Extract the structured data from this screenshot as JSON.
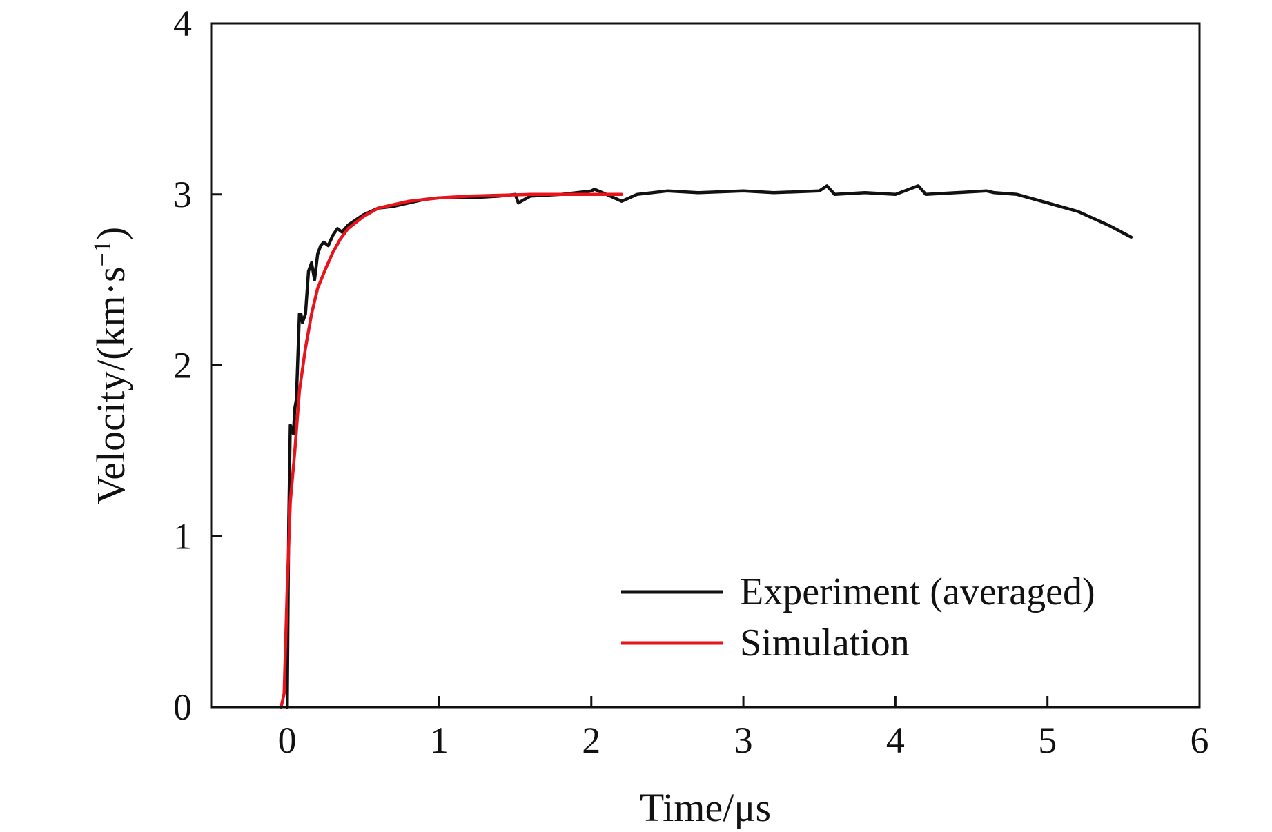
{
  "chart_data": {
    "type": "line",
    "xlabel": "Time/μs",
    "ylabel": "Velocity/(km·s",
    "ylabel_suffix": ")",
    "ylabel_exponent": "−1",
    "xlim": [
      -0.5,
      6
    ],
    "ylim": [
      0,
      4
    ],
    "xticks": [
      0,
      1,
      2,
      3,
      4,
      5,
      6
    ],
    "xtick_labels": [
      "0",
      "1",
      "2",
      "3",
      "4",
      "5",
      "6"
    ],
    "yticks": [
      0,
      1,
      2,
      3,
      4
    ],
    "ytick_labels": [
      "0",
      "1",
      "2",
      "3",
      "4"
    ],
    "grid": false,
    "legend_position": "bottom-right",
    "series": [
      {
        "name": "Experiment (averaged)",
        "color": "#111111",
        "x": [
          0.0,
          0.01,
          0.02,
          0.03,
          0.04,
          0.05,
          0.06,
          0.08,
          0.09,
          0.1,
          0.12,
          0.14,
          0.16,
          0.18,
          0.2,
          0.22,
          0.24,
          0.27,
          0.3,
          0.33,
          0.36,
          0.4,
          0.45,
          0.5,
          0.55,
          0.6,
          0.7,
          0.8,
          0.9,
          1.0,
          1.2,
          1.4,
          1.5,
          1.52,
          1.6,
          1.8,
          2.0,
          2.02,
          2.1,
          2.2,
          2.3,
          2.5,
          2.7,
          3.0,
          3.2,
          3.5,
          3.55,
          3.6,
          3.8,
          4.0,
          4.15,
          4.2,
          4.4,
          4.6,
          4.65,
          4.8,
          5.0,
          5.2,
          5.4,
          5.55
        ],
        "y": [
          0.0,
          1.1,
          1.65,
          1.62,
          1.6,
          1.75,
          1.8,
          2.3,
          2.3,
          2.25,
          2.3,
          2.55,
          2.6,
          2.5,
          2.65,
          2.7,
          2.72,
          2.7,
          2.76,
          2.8,
          2.78,
          2.82,
          2.85,
          2.88,
          2.9,
          2.92,
          2.93,
          2.95,
          2.97,
          2.98,
          2.98,
          2.99,
          3.0,
          2.95,
          2.99,
          3.0,
          3.02,
          3.03,
          3.0,
          2.96,
          3.0,
          3.02,
          3.01,
          3.02,
          3.01,
          3.02,
          3.05,
          3.0,
          3.01,
          3.0,
          3.05,
          3.0,
          3.01,
          3.02,
          3.01,
          3.0,
          2.95,
          2.9,
          2.82,
          2.75
        ]
      },
      {
        "name": "Simulation",
        "color": "#e8141c",
        "x": [
          -0.04,
          -0.02,
          0.0,
          0.02,
          0.05,
          0.08,
          0.12,
          0.16,
          0.2,
          0.25,
          0.3,
          0.35,
          0.4,
          0.5,
          0.6,
          0.7,
          0.8,
          1.0,
          1.2,
          1.4,
          1.6,
          1.8,
          2.0,
          2.2
        ],
        "y": [
          0.0,
          0.08,
          0.7,
          1.2,
          1.5,
          1.85,
          2.1,
          2.3,
          2.45,
          2.56,
          2.66,
          2.74,
          2.8,
          2.87,
          2.92,
          2.94,
          2.96,
          2.98,
          2.99,
          2.995,
          3.0,
          3.0,
          3.0,
          3.0
        ]
      }
    ]
  }
}
